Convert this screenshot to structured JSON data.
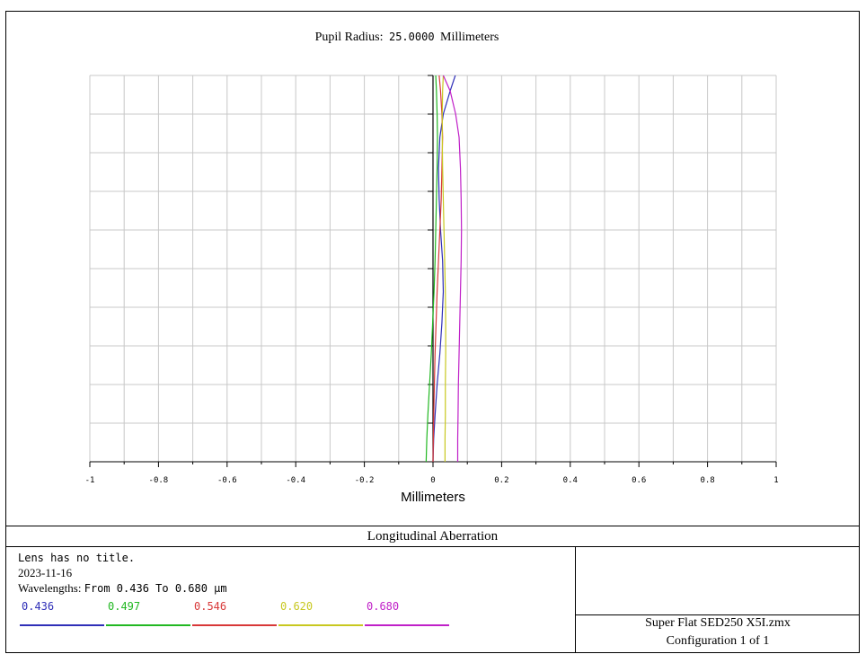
{
  "plot": {
    "title_prefix": "Pupil Radius:",
    "title_value": "25.0000",
    "title_suffix": "Millimeters",
    "xlabel": "Millimeters"
  },
  "chart_data": {
    "type": "line",
    "title": "Pupil Radius: 25.0000 Millimeters",
    "xlabel": "Millimeters",
    "ylabel": "",
    "xlim": [
      -1,
      1
    ],
    "ylim": [
      0,
      1
    ],
    "xticks": [
      "-1",
      "-0.8",
      "-0.6",
      "-0.4",
      "-0.2",
      "0",
      "0.2",
      "0.4",
      "0.6",
      "0.8",
      "1"
    ],
    "grid": true,
    "series": [
      {
        "name": "0.436",
        "color": "#2f2fb8",
        "x": [
          0.0,
          0.002,
          0.006,
          0.012,
          0.02,
          0.026,
          0.03,
          0.028,
          0.022,
          0.018,
          0.016,
          0.02,
          0.03,
          0.05,
          0.065
        ],
        "y": [
          0.0,
          0.06,
          0.12,
          0.2,
          0.28,
          0.36,
          0.44,
          0.52,
          0.6,
          0.68,
          0.76,
          0.84,
          0.9,
          0.96,
          1.0
        ]
      },
      {
        "name": "0.497",
        "color": "#22b822",
        "x": [
          -0.02,
          -0.018,
          -0.015,
          -0.01,
          -0.005,
          -0.001,
          0.003,
          0.006,
          0.008,
          0.01,
          0.012,
          0.013,
          0.012,
          0.01,
          0.008
        ],
        "y": [
          0.0,
          0.06,
          0.12,
          0.2,
          0.28,
          0.36,
          0.44,
          0.52,
          0.6,
          0.68,
          0.76,
          0.84,
          0.9,
          0.96,
          1.0
        ]
      },
      {
        "name": "0.546",
        "color": "#d83838",
        "x": [
          0.0,
          0.001,
          0.002,
          0.004,
          0.006,
          0.009,
          0.012,
          0.016,
          0.02,
          0.024,
          0.026,
          0.028,
          0.026,
          0.022,
          0.018
        ],
        "y": [
          0.0,
          0.06,
          0.12,
          0.2,
          0.28,
          0.36,
          0.44,
          0.52,
          0.6,
          0.68,
          0.76,
          0.84,
          0.9,
          0.96,
          1.0
        ]
      },
      {
        "name": "0.620",
        "color": "#c8c820",
        "x": [
          0.035,
          0.035,
          0.036,
          0.036,
          0.037,
          0.037,
          0.036,
          0.034,
          0.032,
          0.03,
          0.028,
          0.027,
          0.027,
          0.028,
          0.03
        ],
        "y": [
          0.0,
          0.06,
          0.12,
          0.2,
          0.28,
          0.36,
          0.44,
          0.52,
          0.6,
          0.68,
          0.76,
          0.84,
          0.9,
          0.96,
          1.0
        ]
      },
      {
        "name": "0.680",
        "color": "#c020c8",
        "x": [
          0.072,
          0.072,
          0.073,
          0.074,
          0.076,
          0.078,
          0.08,
          0.082,
          0.083,
          0.082,
          0.08,
          0.076,
          0.066,
          0.05,
          0.03
        ],
        "y": [
          0.0,
          0.06,
          0.12,
          0.2,
          0.28,
          0.36,
          0.44,
          0.52,
          0.6,
          0.68,
          0.76,
          0.84,
          0.9,
          0.96,
          1.0
        ]
      }
    ]
  },
  "footer": {
    "title": "Longitudinal Aberration",
    "lens_title": "Lens has no title.",
    "date": "2023-11-16",
    "wavelength_label": "Wavelengths:",
    "wavelength_range": "From 0.436 To 0.680 μm",
    "file": "Super Flat SED250 X5I.zmx",
    "configuration": "Configuration 1 of 1"
  }
}
